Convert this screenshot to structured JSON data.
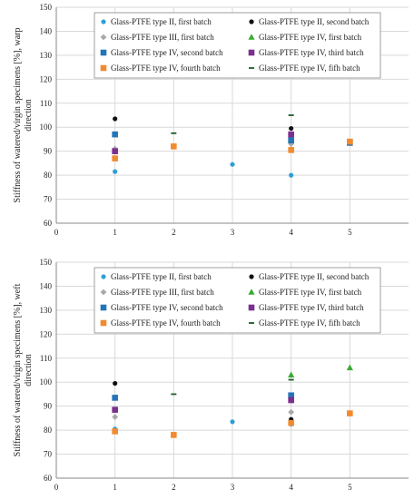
{
  "chart_data": [
    {
      "type": "scatter",
      "ylabel_line1": "Stiffness of watered/virgin specimens [%], warp",
      "ylabel_line2": "direction",
      "xlim": [
        0,
        6
      ],
      "ylim": [
        60,
        150
      ],
      "x_ticks": [
        0,
        1,
        2,
        3,
        4,
        5
      ],
      "y_ticks": [
        60,
        70,
        80,
        90,
        100,
        110,
        120,
        130,
        140,
        150
      ],
      "grid": true,
      "legend": "top, inside plot area",
      "series": [
        {
          "name": "Glass-PTFE type II, first batch",
          "marker": "circle",
          "color": "#2e9fd8",
          "points": [
            [
              1,
              81.5
            ],
            [
              3,
              84.5
            ],
            [
              4,
              80
            ]
          ]
        },
        {
          "name": "Glass-PTFE type II, second batch",
          "marker": "circle",
          "color": "#111111",
          "points": [
            [
              1,
              103.5
            ],
            [
              4,
              99.5
            ]
          ]
        },
        {
          "name": "Glass-PTFE type III, first batch",
          "marker": "diamond",
          "color": "#a9a9a9",
          "points": [
            [
              1,
              91
            ],
            [
              4,
              93
            ]
          ]
        },
        {
          "name": "Glass-PTFE type IV, first batch",
          "marker": "triangle",
          "color": "#3aaa35",
          "points": [
            [
              4,
              95
            ]
          ]
        },
        {
          "name": "Glass-PTFE type IV, second batch",
          "marker": "square",
          "color": "#2474b8",
          "points": [
            [
              1,
              97
            ],
            [
              4,
              94.5
            ],
            [
              5,
              93.5
            ]
          ]
        },
        {
          "name": "Glass-PTFE type IV, third batch",
          "marker": "square",
          "color": "#7b2f8e",
          "points": [
            [
              1,
              90
            ],
            [
              4,
              97
            ]
          ]
        },
        {
          "name": "Glass-PTFE type IV, fourth batch",
          "marker": "square",
          "color": "#f28a30",
          "points": [
            [
              1,
              87
            ],
            [
              2,
              92
            ],
            [
              4,
              90.5
            ],
            [
              5,
              94
            ]
          ]
        },
        {
          "name": "Glass-PTFE type IV, fifh batch",
          "marker": "dash",
          "color": "#1f5c2a",
          "points": [
            [
              2,
              97.5
            ],
            [
              4,
              105
            ]
          ]
        }
      ]
    },
    {
      "type": "scatter",
      "ylabel_line1": "Stiffness of watered/virgin specimens [%], weft",
      "ylabel_line2": "direction",
      "xlim": [
        0,
        6
      ],
      "ylim": [
        60,
        150
      ],
      "x_ticks": [
        0,
        1,
        2,
        3,
        4,
        5
      ],
      "y_ticks": [
        60,
        70,
        80,
        90,
        100,
        110,
        120,
        130,
        140,
        150
      ],
      "grid": true,
      "legend": "top, inside plot area",
      "series": [
        {
          "name": "Glass-PTFE type II, first batch",
          "marker": "circle",
          "color": "#2e9fd8",
          "points": [
            [
              1,
              80.5
            ],
            [
              3,
              83.5
            ],
            [
              4,
              82.5
            ]
          ]
        },
        {
          "name": "Glass-PTFE type II, second batch",
          "marker": "circle",
          "color": "#111111",
          "points": [
            [
              1,
              99.5
            ],
            [
              4,
              84.5
            ]
          ]
        },
        {
          "name": "Glass-PTFE type III, first batch",
          "marker": "diamond",
          "color": "#a9a9a9",
          "points": [
            [
              1,
              85.5
            ],
            [
              4,
              87.5
            ]
          ]
        },
        {
          "name": "Glass-PTFE type IV, first batch",
          "marker": "triangle",
          "color": "#3aaa35",
          "points": [
            [
              4,
              103
            ],
            [
              5,
              106
            ]
          ]
        },
        {
          "name": "Glass-PTFE type IV, second batch",
          "marker": "square",
          "color": "#2474b8",
          "points": [
            [
              1,
              93.5
            ],
            [
              4,
              94.5
            ]
          ]
        },
        {
          "name": "Glass-PTFE type IV, third batch",
          "marker": "square",
          "color": "#7b2f8e",
          "points": [
            [
              1,
              88.5
            ],
            [
              4,
              92.5
            ]
          ]
        },
        {
          "name": "Glass-PTFE type IV, fourth batch",
          "marker": "square",
          "color": "#f28a30",
          "points": [
            [
              1,
              79.5
            ],
            [
              2,
              78
            ],
            [
              4,
              83
            ],
            [
              5,
              87
            ]
          ]
        },
        {
          "name": "Glass-PTFE type IV, fifh batch",
          "marker": "dash",
          "color": "#1f5c2a",
          "points": [
            [
              2,
              95
            ],
            [
              4,
              101
            ]
          ]
        }
      ]
    }
  ]
}
